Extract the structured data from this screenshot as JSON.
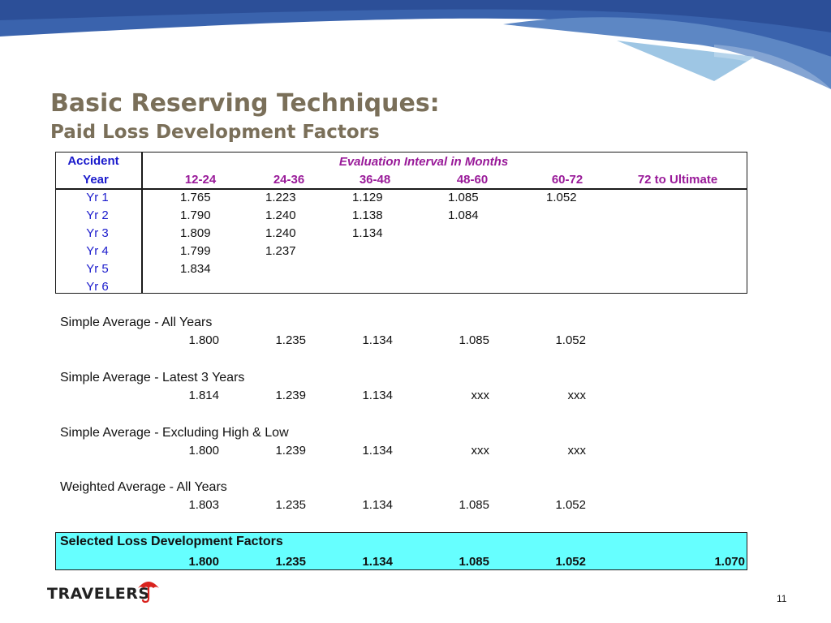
{
  "title": "Basic Reserving Techniques:",
  "subtitle": "Paid Loss Development Factors",
  "table": {
    "accident_label": "Accident",
    "year_label": "Year",
    "eval_header": "Evaluation Interval in Months",
    "intervals": [
      "12-24",
      "24-36",
      "36-48",
      "48-60",
      "60-72",
      "72 to Ultimate"
    ],
    "rows": [
      {
        "year": "Yr 1",
        "values": [
          "1.765",
          "1.223",
          "1.129",
          "1.085",
          "1.052"
        ]
      },
      {
        "year": "Yr 2",
        "values": [
          "1.790",
          "1.240",
          "1.138",
          "1.084"
        ]
      },
      {
        "year": "Yr 3",
        "values": [
          "1.809",
          "1.240",
          "1.134"
        ]
      },
      {
        "year": "Yr 4",
        "values": [
          "1.799",
          "1.237"
        ]
      },
      {
        "year": "Yr 5",
        "values": [
          "1.834"
        ]
      },
      {
        "year": "Yr 6",
        "values": []
      }
    ]
  },
  "averages": [
    {
      "label": "Simple Average - All Years",
      "values": [
        "1.800",
        "1.235",
        "1.134",
        "1.085",
        "1.052"
      ]
    },
    {
      "label": "Simple Average - Latest 3 Years",
      "values": [
        "1.814",
        "1.239",
        "1.134",
        "xxx",
        "xxx"
      ]
    },
    {
      "label": "Simple Average - Excluding High & Low",
      "values": [
        "1.800",
        "1.239",
        "1.134",
        "xxx",
        "xxx"
      ]
    },
    {
      "label": "Weighted Average - All Years",
      "values": [
        "1.803",
        "1.235",
        "1.134",
        "1.085",
        "1.052"
      ]
    }
  ],
  "selected": {
    "label": "Selected Loss Development Factors",
    "values": [
      "1.800",
      "1.235",
      "1.134",
      "1.085",
      "1.052",
      "1.070"
    ]
  },
  "logo_text": "TRAVELERS",
  "page_number": "11",
  "colors": {
    "title": "#7a6f59",
    "year_text": "#1a1acc",
    "header_text": "#991a99",
    "selected_bg": "#66ffff",
    "wave": "#2d5aa6"
  }
}
